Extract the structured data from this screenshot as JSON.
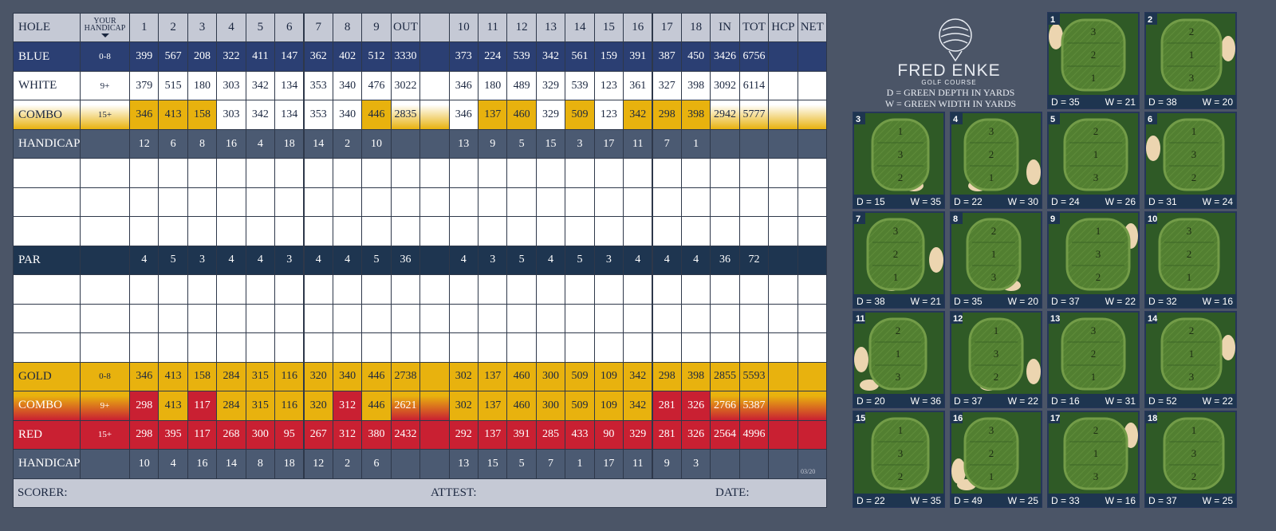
{
  "scorecard": {
    "header": {
      "hole": "HOLE",
      "your": "YOUR",
      "handicap": "HANDICAP",
      "columns": [
        "1",
        "2",
        "3",
        "4",
        "5",
        "6",
        "7",
        "8",
        "9",
        "OUT",
        "10",
        "11",
        "12",
        "13",
        "14",
        "15",
        "16",
        "17",
        "18",
        "IN",
        "TOT"
      ],
      "extra": [
        "HCP",
        "NET"
      ],
      "color": "#c5c9d5",
      "text_color": "#1b2740"
    },
    "rows": [
      {
        "name": "BLUE",
        "handicap": "0-8",
        "color": "#2b3f73",
        "text_color": "#ffffff",
        "values": [
          399,
          567,
          208,
          322,
          411,
          147,
          362,
          402,
          512,
          3330,
          373,
          224,
          539,
          342,
          561,
          159,
          391,
          387,
          450,
          3426,
          6756
        ]
      },
      {
        "name": "WHITE",
        "handicap": "9+",
        "color": "#ffffff",
        "text_color": "#1b2740",
        "values": [
          379,
          515,
          180,
          303,
          342,
          134,
          353,
          340,
          476,
          3022,
          346,
          180,
          489,
          329,
          539,
          123,
          361,
          327,
          398,
          3092,
          6114
        ]
      },
      {
        "name": "COMBO",
        "handicap": "15+",
        "color": [
          "#ffffff",
          "#e8b20e"
        ],
        "text_color": "#1b2740",
        "values": [
          346,
          413,
          158,
          303,
          342,
          134,
          353,
          340,
          446,
          2835,
          346,
          137,
          460,
          329,
          509,
          123,
          342,
          298,
          398,
          2942,
          5777
        ],
        "cell_colors": [
          "#e8b20e",
          "#e8b20e",
          "#e8b20e",
          "#ffffff",
          "#ffffff",
          "#ffffff",
          "#ffffff",
          "#ffffff",
          "#e8b20e",
          null,
          "#ffffff",
          "#e8b20e",
          "#e8b20e",
          "#ffffff",
          "#e8b20e",
          "#ffffff",
          "#e8b20e",
          "#e8b20e",
          "#e8b20e",
          null,
          null
        ]
      },
      {
        "name": "HANDICAP",
        "color": "#4b5a72",
        "text_color": "#ffffff",
        "values": [
          12,
          6,
          8,
          16,
          4,
          18,
          14,
          2,
          10,
          null,
          13,
          9,
          5,
          15,
          3,
          17,
          11,
          7,
          1,
          null,
          null
        ]
      },
      {
        "name": "PAR",
        "color": "#1e3550",
        "text_color": "#ffffff",
        "values": [
          4,
          5,
          3,
          4,
          4,
          3,
          4,
          4,
          5,
          36,
          4,
          3,
          5,
          4,
          5,
          3,
          4,
          4,
          4,
          36,
          72
        ]
      },
      {
        "name": "GOLD",
        "handicap": "0-8",
        "color": "#e8b20e",
        "text_color": "#1b2740",
        "values": [
          346,
          413,
          158,
          284,
          315,
          116,
          320,
          340,
          446,
          2738,
          302,
          137,
          460,
          300,
          509,
          109,
          342,
          298,
          398,
          2855,
          5593
        ]
      },
      {
        "name": "COMBO",
        "handicap": "9+",
        "color": [
          "#e8b20e",
          "#c92032"
        ],
        "text_color": "#ffffff",
        "values": [
          298,
          413,
          117,
          284,
          315,
          116,
          320,
          312,
          446,
          2621,
          302,
          137,
          460,
          300,
          509,
          109,
          342,
          281,
          326,
          2766,
          5387
        ],
        "cell_colors": [
          "#c92032",
          "#e8b20e",
          "#c92032",
          "#e8b20e",
          "#e8b20e",
          "#e8b20e",
          "#e8b20e",
          "#c92032",
          "#e8b20e",
          null,
          "#e8b20e",
          "#e8b20e",
          "#e8b20e",
          "#e8b20e",
          "#e8b20e",
          "#e8b20e",
          "#e8b20e",
          "#c92032",
          "#c92032",
          null,
          null
        ]
      },
      {
        "name": "RED",
        "handicap": "15+",
        "color": "#c92032",
        "text_color": "#ffffff",
        "values": [
          298,
          395,
          117,
          268,
          300,
          95,
          267,
          312,
          380,
          2432,
          292,
          137,
          391,
          285,
          433,
          90,
          329,
          281,
          326,
          2564,
          4996
        ]
      },
      {
        "name": "HANDICAP",
        "color": "#4b5a72",
        "text_color": "#ffffff",
        "values": [
          10,
          4,
          16,
          14,
          8,
          18,
          12,
          2,
          6,
          null,
          13,
          15,
          5,
          7,
          1,
          17,
          11,
          9,
          3,
          null,
          null
        ]
      }
    ],
    "footer": {
      "scorer": "SCORER:",
      "attest": "ATTEST:",
      "date": "DATE:",
      "code": "03/20"
    }
  },
  "logo": {
    "name": "FRED ENKE",
    "sub": "GOLF COURSE",
    "depth_note": "D = GREEN DEPTH IN YARDS",
    "width_note": "W = GREEN WIDTH IN YARDS"
  },
  "greens": [
    {
      "hole": "1",
      "zones": [
        "3",
        "2",
        "1"
      ],
      "depth": "D = 35",
      "width": "W = 21"
    },
    {
      "hole": "2",
      "zones": [
        "2",
        "1",
        "3"
      ],
      "depth": "D = 38",
      "width": "W = 20"
    },
    {
      "hole": "3",
      "zones": [
        "1",
        "3",
        "2"
      ],
      "depth": "D = 15",
      "width": "W = 35"
    },
    {
      "hole": "4",
      "zones": [
        "3",
        "2",
        "1"
      ],
      "depth": "D = 22",
      "width": "W = 30"
    },
    {
      "hole": "5",
      "zones": [
        "2",
        "1",
        "3"
      ],
      "depth": "D = 24",
      "width": "W = 26"
    },
    {
      "hole": "6",
      "zones": [
        "1",
        "3",
        "2"
      ],
      "depth": "D = 31",
      "width": "W = 24"
    },
    {
      "hole": "7",
      "zones": [
        "3",
        "2",
        "1"
      ],
      "depth": "D = 38",
      "width": "W = 21"
    },
    {
      "hole": "8",
      "zones": [
        "2",
        "1",
        "3"
      ],
      "depth": "D = 35",
      "width": "W = 20"
    },
    {
      "hole": "9",
      "zones": [
        "1",
        "3",
        "2"
      ],
      "depth": "D = 37",
      "width": "W = 22"
    },
    {
      "hole": "10",
      "zones": [
        "3",
        "2",
        "1"
      ],
      "depth": "D = 32",
      "width": "W = 16"
    },
    {
      "hole": "11",
      "zones": [
        "2",
        "1",
        "3"
      ],
      "depth": "D = 20",
      "width": "W = 36"
    },
    {
      "hole": "12",
      "zones": [
        "1",
        "3",
        "2"
      ],
      "depth": "D = 37",
      "width": "W = 22"
    },
    {
      "hole": "13",
      "zones": [
        "3",
        "2",
        "1"
      ],
      "depth": "D = 16",
      "width": "W = 31"
    },
    {
      "hole": "14",
      "zones": [
        "2",
        "1",
        "3"
      ],
      "depth": "D = 52",
      "width": "W = 22"
    },
    {
      "hole": "15",
      "zones": [
        "1",
        "3",
        "2"
      ],
      "depth": "D = 22",
      "width": "W = 35"
    },
    {
      "hole": "16",
      "zones": [
        "3",
        "2",
        "1"
      ],
      "depth": "D = 49",
      "width": "W = 25"
    },
    {
      "hole": "17",
      "zones": [
        "2",
        "1",
        "3"
      ],
      "depth": "D = 33",
      "width": "W = 16"
    },
    {
      "hole": "18",
      "zones": [
        "1",
        "3",
        "2"
      ],
      "depth": "D = 37",
      "width": "W = 25"
    }
  ]
}
